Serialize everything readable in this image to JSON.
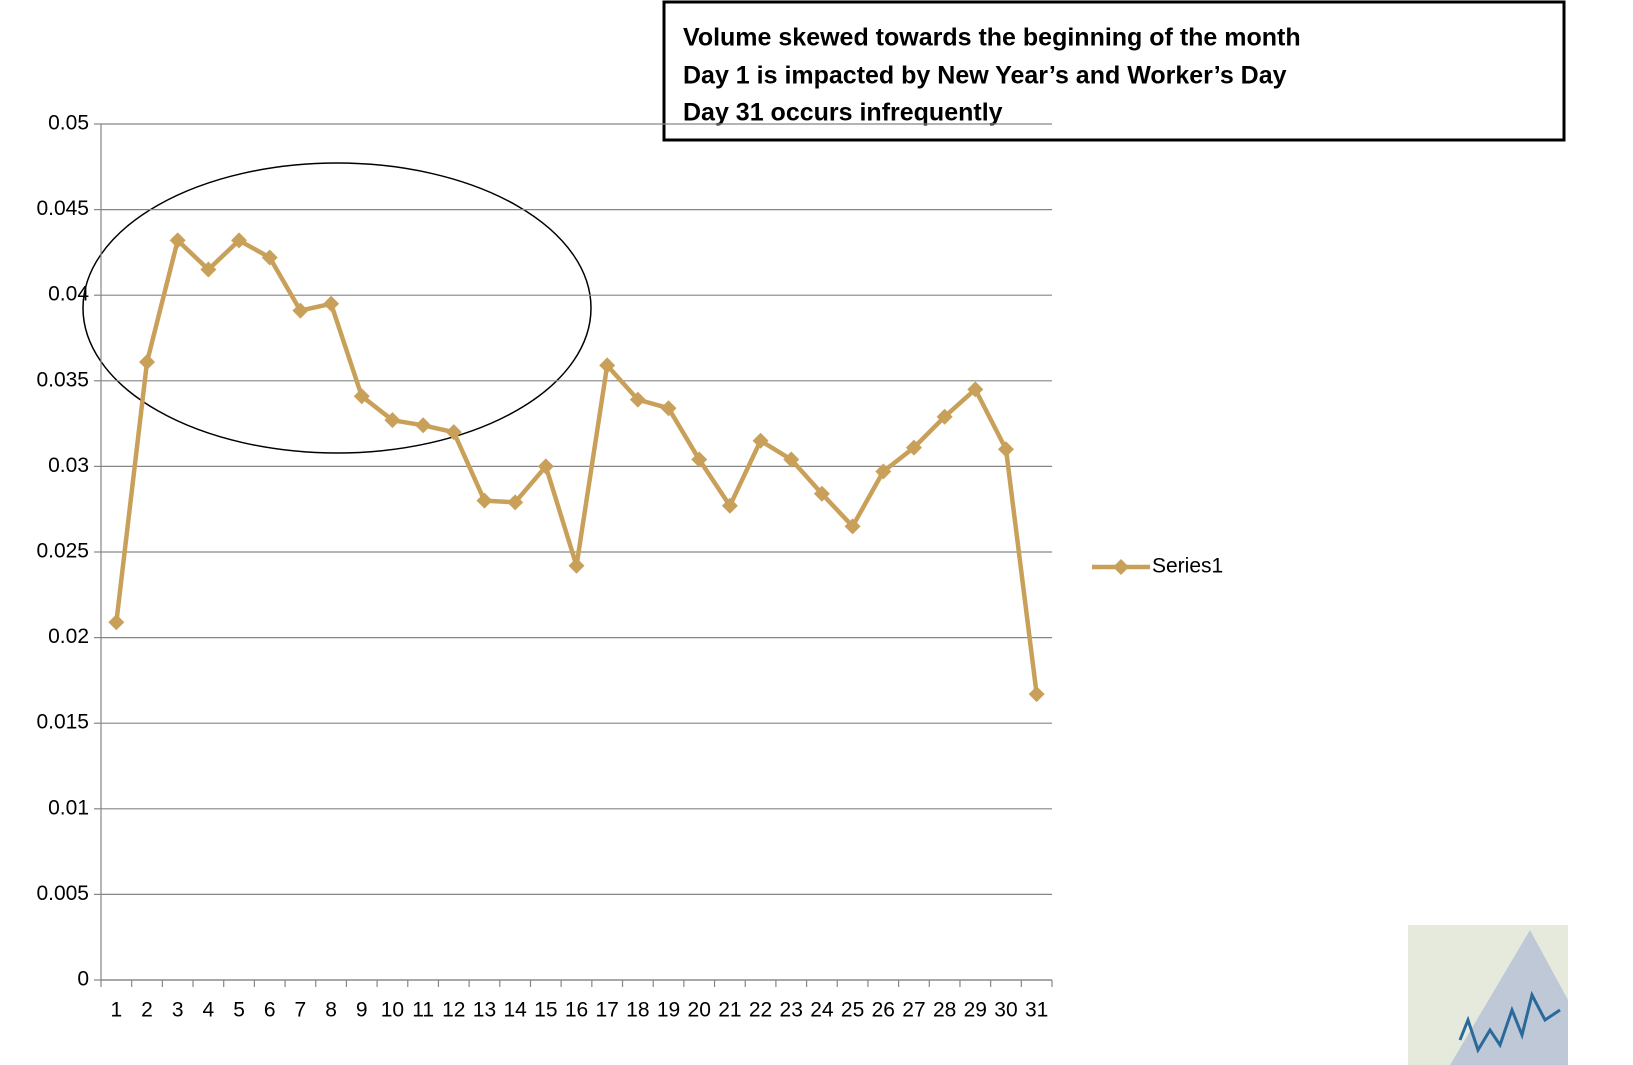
{
  "chart_data": {
    "type": "line",
    "annotation": [
      "Volume skewed  towards the beginning of the month",
      "Day 1 is impacted by New Year’s and Worker’s Day",
      "Day 31 occurs infrequently"
    ],
    "categories": [
      "1",
      "2",
      "3",
      "4",
      "5",
      "6",
      "7",
      "8",
      "9",
      "10",
      "11",
      "12",
      "13",
      "14",
      "15",
      "16",
      "17",
      "18",
      "19",
      "20",
      "21",
      "22",
      "23",
      "24",
      "25",
      "26",
      "27",
      "28",
      "29",
      "30",
      "31"
    ],
    "series": [
      {
        "name": "Series1",
        "color": "#c9a05a",
        "values": [
          0.0209,
          0.0361,
          0.0432,
          0.0415,
          0.0432,
          0.0422,
          0.0391,
          0.0395,
          0.0341,
          0.0327,
          0.0324,
          0.032,
          0.028,
          0.0279,
          0.03,
          0.0242,
          0.0359,
          0.0339,
          0.0334,
          0.0304,
          0.0277,
          0.0315,
          0.0304,
          0.0284,
          0.0265,
          0.0297,
          0.0311,
          0.0329,
          0.0345,
          0.031,
          0.0167
        ]
      }
    ],
    "ylim": [
      0,
      0.05
    ],
    "yticks": [
      0,
      0.005,
      0.01,
      0.015,
      0.02,
      0.025,
      0.03,
      0.035,
      0.04,
      0.045,
      0.05
    ],
    "grid": true,
    "legend": "right"
  }
}
